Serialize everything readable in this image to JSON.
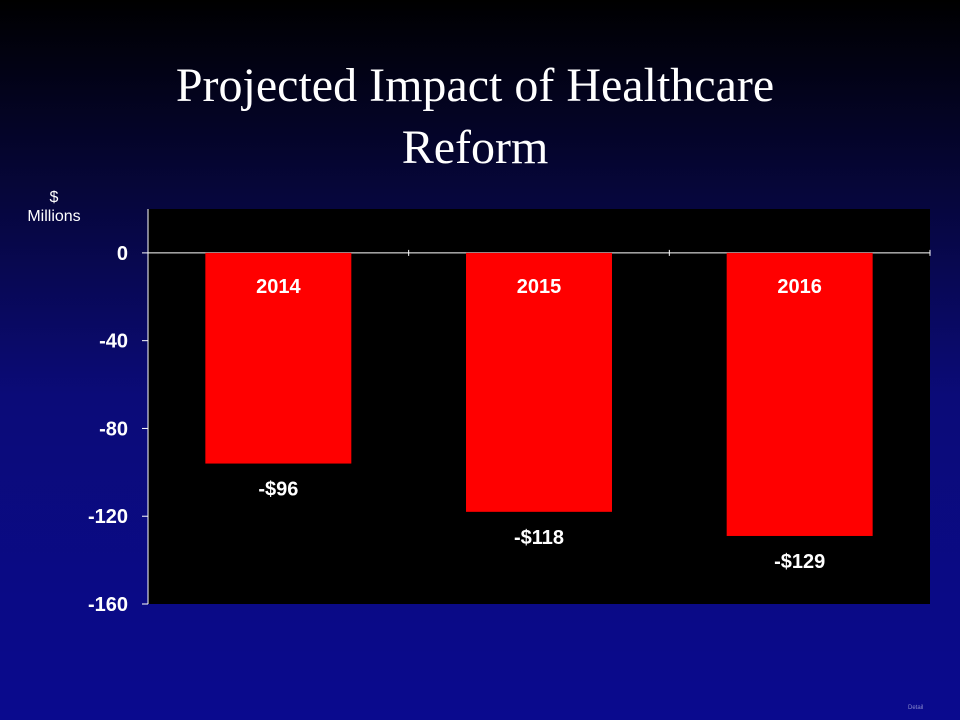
{
  "slide": {
    "title_line1": "Projected Impact of Healthcare",
    "title_line2": "Reform",
    "unit_line1": "$",
    "unit_line2": "Millions",
    "footer_tiny": "Detail"
  },
  "colors": {
    "background_top": "#000000",
    "background_bottom": "#0a0a8e",
    "plot_area": "#000000",
    "bar": "#ff0000",
    "text": "#ffffff"
  },
  "chart_data": {
    "type": "bar",
    "categories": [
      "2014",
      "2015",
      "2016"
    ],
    "values": [
      -96,
      -118,
      -129
    ],
    "data_labels": [
      "-$96",
      "-$118",
      "-$129"
    ],
    "title": "Projected Impact of Healthcare Reform",
    "xlabel": "",
    "ylabel": "$ Millions",
    "ylim": [
      -160,
      20
    ],
    "yticks": [
      0,
      -40,
      -80,
      -120,
      -160
    ],
    "ytick_labels": [
      "0",
      "-40",
      "-80",
      "-120",
      "-160"
    ],
    "grid": false,
    "legend": "none",
    "category_labels_position": "inside bar near top",
    "data_labels_position": "below bar end"
  }
}
